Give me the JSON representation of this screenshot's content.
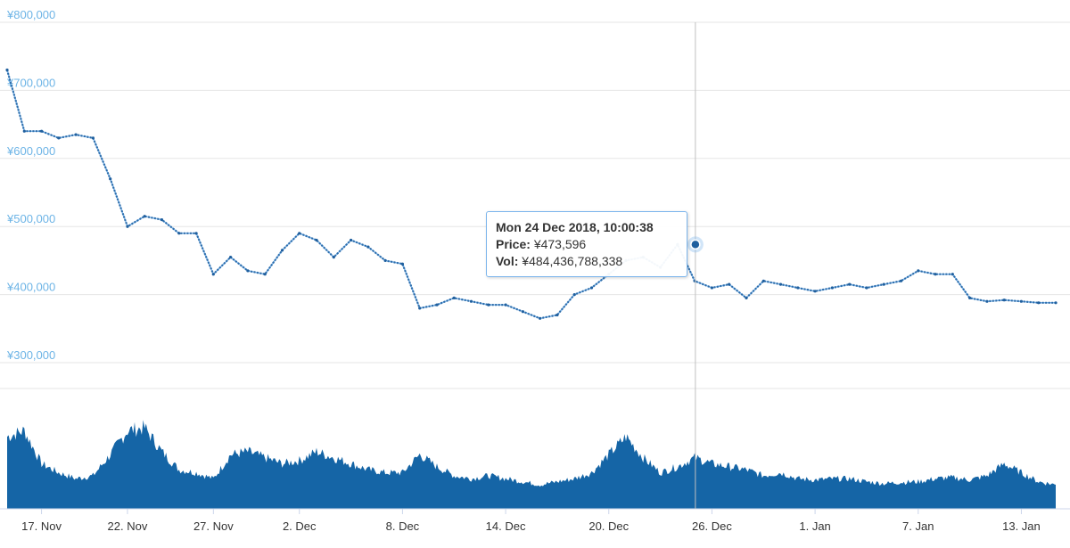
{
  "chart_data": {
    "type": "line",
    "title": "",
    "price_axis": {
      "ticks": [
        "¥800,000",
        "¥700,000",
        "¥600,000",
        "¥500,000",
        "¥400,000",
        "¥300,000"
      ],
      "tick_values": [
        800000,
        700000,
        600000,
        500000,
        400000,
        300000
      ],
      "ylim": [
        300000,
        800000
      ],
      "grid": true
    },
    "x_axis": {
      "range": [
        "2018-11-15",
        "2019-01-15"
      ],
      "ticks": [
        {
          "label": "17. Nov",
          "date": "2018-11-17"
        },
        {
          "label": "22. Nov",
          "date": "2018-11-22"
        },
        {
          "label": "27. Nov",
          "date": "2018-11-27"
        },
        {
          "label": "2. Dec",
          "date": "2018-12-02"
        },
        {
          "label": "8. Dec",
          "date": "2018-12-08"
        },
        {
          "label": "14. Dec",
          "date": "2018-12-14"
        },
        {
          "label": "20. Dec",
          "date": "2018-12-20"
        },
        {
          "label": "26. Dec",
          "date": "2018-12-26"
        },
        {
          "label": "1. Jan",
          "date": "2019-01-01"
        },
        {
          "label": "7. Jan",
          "date": "2019-01-07"
        },
        {
          "label": "13. Jan",
          "date": "2019-01-13"
        }
      ]
    },
    "series": [
      {
        "name": "Price",
        "color": "#2f7ed8",
        "x": [
          "2018-11-15",
          "2018-11-16",
          "2018-11-17",
          "2018-11-18",
          "2018-11-19",
          "2018-11-20",
          "2018-11-21",
          "2018-11-22",
          "2018-11-23",
          "2018-11-24",
          "2018-11-25",
          "2018-11-26",
          "2018-11-27",
          "2018-11-28",
          "2018-11-29",
          "2018-11-30",
          "2018-12-01",
          "2018-12-02",
          "2018-12-03",
          "2018-12-04",
          "2018-12-05",
          "2018-12-06",
          "2018-12-07",
          "2018-12-08",
          "2018-12-09",
          "2018-12-10",
          "2018-12-11",
          "2018-12-12",
          "2018-12-13",
          "2018-12-14",
          "2018-12-15",
          "2018-12-16",
          "2018-12-17",
          "2018-12-18",
          "2018-12-19",
          "2018-12-20",
          "2018-12-21",
          "2018-12-22",
          "2018-12-23",
          "2018-12-24",
          "2018-12-25",
          "2018-12-26",
          "2018-12-27",
          "2018-12-28",
          "2018-12-29",
          "2018-12-30",
          "2018-12-31",
          "2019-01-01",
          "2019-01-02",
          "2019-01-03",
          "2019-01-04",
          "2019-01-05",
          "2019-01-06",
          "2019-01-07",
          "2019-01-08",
          "2019-01-09",
          "2019-01-10",
          "2019-01-11",
          "2019-01-12",
          "2019-01-13",
          "2019-01-14",
          "2019-01-15"
        ],
        "values": [
          730000,
          640000,
          640000,
          630000,
          635000,
          630000,
          570000,
          500000,
          515000,
          510000,
          490000,
          490000,
          430000,
          455000,
          435000,
          430000,
          465000,
          490000,
          480000,
          455000,
          480000,
          470000,
          450000,
          445000,
          380000,
          385000,
          395000,
          390000,
          385000,
          385000,
          375000,
          365000,
          370000,
          400000,
          410000,
          430000,
          450000,
          455000,
          440000,
          473596,
          420000,
          410000,
          415000,
          395000,
          420000,
          415000,
          410000,
          405000,
          410000,
          415000,
          410000,
          415000,
          420000,
          435000,
          430000,
          430000,
          395000,
          390000,
          392000,
          390000,
          388000,
          388000
        ]
      },
      {
        "name": "Vol",
        "color": "#1565a6",
        "values": [
          120,
          130,
          75,
          60,
          50,
          55,
          90,
          130,
          135,
          95,
          65,
          60,
          50,
          90,
          95,
          85,
          75,
          80,
          95,
          85,
          75,
          65,
          60,
          60,
          90,
          70,
          55,
          50,
          55,
          50,
          45,
          40,
          45,
          50,
          60,
          90,
          120,
          85,
          60,
          70,
          85,
          75,
          70,
          65,
          55,
          60,
          50,
          48,
          50,
          50,
          45,
          42,
          44,
          45,
          50,
          52,
          48,
          55,
          75,
          60,
          45,
          40
        ],
        "ylim": [
          0,
          200
        ]
      }
    ],
    "tooltip": {
      "title": "Mon 24 Dec 2018, 10:00:38",
      "price_label": "Price:",
      "price_value": "¥473,596",
      "vol_label": "Vol:",
      "vol_value": "¥484,436,788,338",
      "x": "2018-12-24",
      "price": 473596
    }
  }
}
